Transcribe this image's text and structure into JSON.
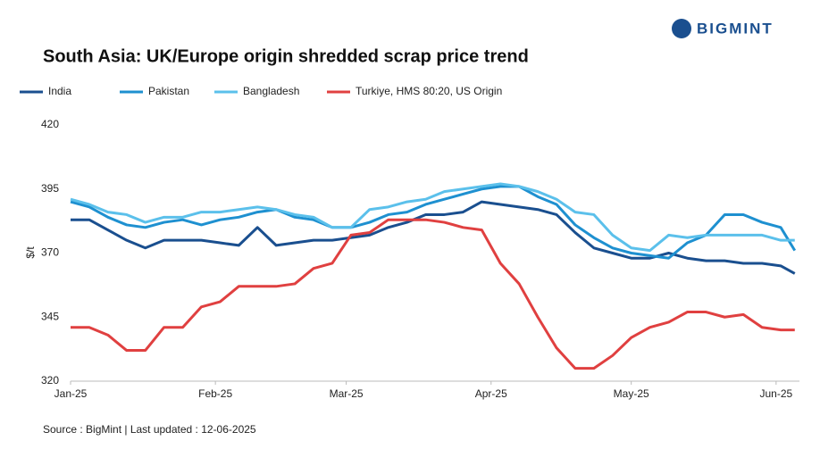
{
  "chart_data": {
    "type": "line",
    "brand": "BIGMINT",
    "title": "South Asia: UK/Europe origin shredded scrap price trend",
    "y_label": "$/t",
    "source": "Source : BigMint | Last updated : 12-06-2025",
    "x": [
      0,
      4,
      8,
      12,
      16,
      20,
      24,
      28,
      32,
      36,
      40,
      44,
      48,
      52,
      56,
      60,
      64,
      68,
      72,
      76,
      80,
      84,
      88,
      92,
      96,
      100,
      104,
      108,
      112,
      116,
      120,
      124,
      128,
      132,
      136,
      140,
      144,
      148,
      152,
      155
    ],
    "xlim": [
      0,
      156
    ],
    "xticks": [
      {
        "value": 0,
        "label": "Jan-25"
      },
      {
        "value": 31,
        "label": "Feb-25"
      },
      {
        "value": 59,
        "label": "Mar-25"
      },
      {
        "value": 90,
        "label": "Apr-25"
      },
      {
        "value": 120,
        "label": "May-25"
      },
      {
        "value": 151,
        "label": "Jun-25"
      }
    ],
    "ylim": [
      320,
      420
    ],
    "yticks": [
      320,
      345,
      370,
      395,
      420
    ],
    "grid": false,
    "series": [
      {
        "name": "India",
        "color": "#1a4f8f",
        "values": [
          383,
          383,
          379,
          375,
          372,
          375,
          375,
          375,
          374,
          373,
          380,
          373,
          374,
          375,
          375,
          376,
          377,
          380,
          382,
          385,
          385,
          386,
          390,
          389,
          388,
          387,
          385,
          378,
          372,
          370,
          368,
          368,
          370,
          368,
          367,
          367,
          366,
          366,
          365,
          362
        ]
      },
      {
        "name": "Pakistan",
        "color": "#1e90d0",
        "values": [
          390,
          388,
          384,
          381,
          380,
          382,
          383,
          381,
          383,
          384,
          386,
          387,
          384,
          383,
          380,
          380,
          382,
          385,
          386,
          389,
          391,
          393,
          395,
          396,
          396,
          392,
          389,
          381,
          376,
          372,
          370,
          369,
          368,
          374,
          377,
          385,
          385,
          382,
          380,
          371
        ]
      },
      {
        "name": "Bangladesh",
        "color": "#5bc0eb",
        "values": [
          391,
          389,
          386,
          385,
          382,
          384,
          384,
          386,
          386,
          387,
          388,
          387,
          385,
          384,
          380,
          380,
          387,
          388,
          390,
          391,
          394,
          395,
          396,
          397,
          396,
          394,
          391,
          386,
          385,
          377,
          372,
          371,
          377,
          376,
          377,
          377,
          377,
          377,
          375,
          375
        ]
      },
      {
        "name": "Turkiye, HMS 80:20, US Origin",
        "color": "#e04040",
        "values": [
          341,
          341,
          338,
          332,
          332,
          341,
          341,
          349,
          351,
          357,
          357,
          357,
          358,
          364,
          366,
          377,
          378,
          383,
          383,
          383,
          382,
          380,
          379,
          366,
          358,
          345,
          333,
          325,
          325,
          330,
          337,
          341,
          343,
          347,
          347,
          345,
          346,
          341,
          340,
          340
        ]
      }
    ]
  }
}
